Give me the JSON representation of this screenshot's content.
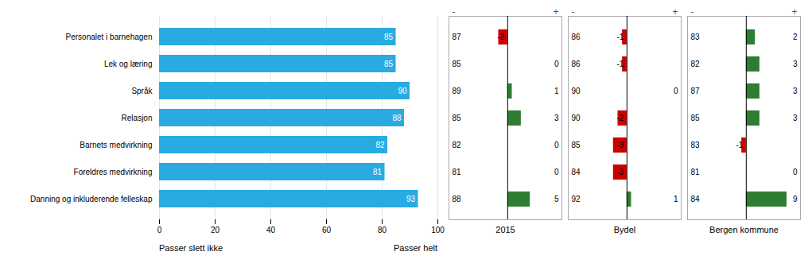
{
  "chart_data": [
    {
      "type": "bar",
      "orientation": "horizontal",
      "categories": [
        "Personalet i barnehagen",
        "Lek og læring",
        "Språk",
        "Relasjon",
        "Barnets medvirkning",
        "Foreldres medvirkning",
        "Danning og inkluderende felleskap"
      ],
      "values": [
        85,
        85,
        90,
        88,
        82,
        81,
        93
      ],
      "color": "#29ABE2",
      "data_labels": true,
      "xlim": [
        0,
        100
      ],
      "xticks": [
        0,
        20,
        40,
        60,
        80,
        100
      ],
      "grid": true,
      "annotations": [
        "Passer slett ikke",
        "Passer helt"
      ]
    },
    {
      "type": "bar",
      "orientation": "horizontal",
      "xlabel": "2015",
      "categories": [
        "Personalet i barnehagen",
        "Lek og læring",
        "Språk",
        "Relasjon",
        "Barnets medvirkning",
        "Foreldres medvirkning",
        "Danning og inkluderende felleskap"
      ],
      "scores": [
        87,
        85,
        89,
        85,
        82,
        81,
        88
      ],
      "values": [
        -2,
        0,
        1,
        3,
        0,
        0,
        5
      ],
      "colors": [
        "#CC0000",
        "#2E7D32",
        "#2E7D32",
        "#2E7D32",
        "#2E7D32",
        "#2E7D32",
        "#2E7D32"
      ],
      "data_labels": true,
      "tick_labels": false,
      "xlim": [
        -13,
        12
      ],
      "xticks": [],
      "annotations": [
        "-",
        "+"
      ]
    },
    {
      "type": "bar",
      "orientation": "horizontal",
      "xlabel": "Bydel",
      "categories": [
        "Personalet i barnehagen",
        "Lek og læring",
        "Språk",
        "Relasjon",
        "Barnets medvirkning",
        "Foreldres medvirkning",
        "Danning og inkluderende felleskap"
      ],
      "scores": [
        86,
        86,
        90,
        90,
        85,
        84,
        92
      ],
      "values": [
        -1,
        -1,
        0,
        -2,
        -3,
        -3,
        1
      ],
      "colors": [
        "#CC0000",
        "#CC0000",
        "#2E7D32",
        "#CC0000",
        "#CC0000",
        "#CC0000",
        "#2E7D32"
      ],
      "data_labels": true,
      "tick_labels": false,
      "xlim": [
        -13,
        12
      ],
      "xticks": [],
      "annotations": [
        "-",
        "+"
      ]
    },
    {
      "type": "bar",
      "orientation": "horizontal",
      "xlabel": "Bergen kommune",
      "categories": [
        "Personalet i barnehagen",
        "Lek og læring",
        "Språk",
        "Relasjon",
        "Barnets medvirkning",
        "Foreldres medvirkning",
        "Danning og inkluderende felleskap"
      ],
      "scores": [
        83,
        82,
        87,
        85,
        83,
        81,
        84
      ],
      "values": [
        2,
        3,
        3,
        3,
        -1,
        0,
        9
      ],
      "colors": [
        "#2E7D32",
        "#2E7D32",
        "#2E7D32",
        "#2E7D32",
        "#CC0000",
        "#2E7D32",
        "#2E7D32"
      ],
      "data_labels": true,
      "tick_labels": false,
      "xlim": [
        -13,
        12
      ],
      "xticks": [],
      "annotations": [
        "-",
        "+"
      ]
    }
  ]
}
